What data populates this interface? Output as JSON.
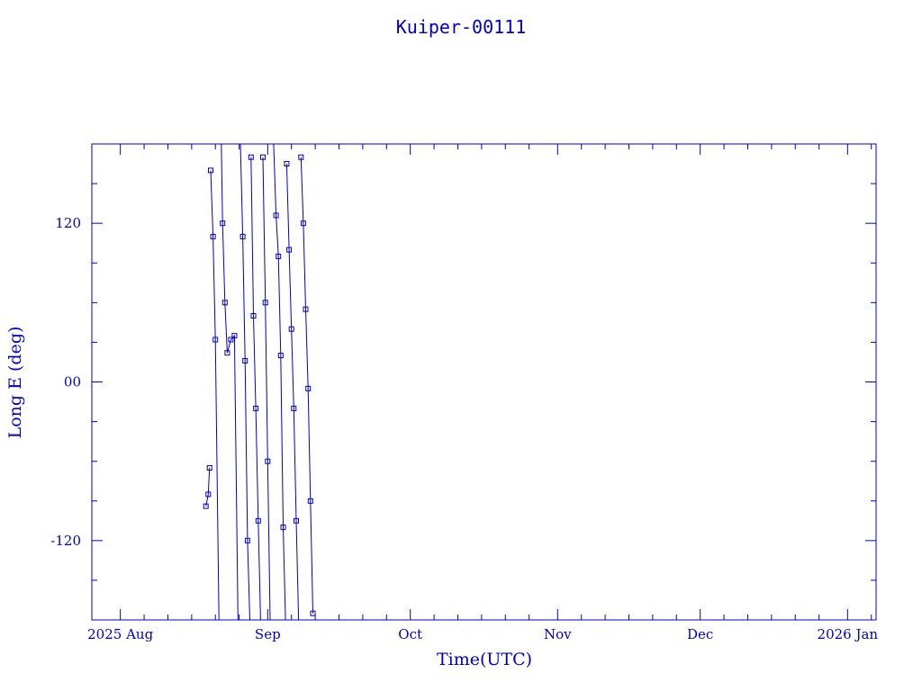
{
  "chart_data": {
    "type": "line",
    "title": "Kuiper-00111",
    "xlabel": "Time(UTC)",
    "ylabel": "Long E (deg)",
    "x_range": [
      "2025-07-26",
      "2026-01-07"
    ],
    "ylim": [
      -180,
      180
    ],
    "x_ticks": [
      {
        "date": "2025-08-01",
        "label": "2025 Aug"
      },
      {
        "date": "2025-09-01",
        "label": "Sep"
      },
      {
        "date": "2025-10-01",
        "label": "Oct"
      },
      {
        "date": "2025-11-01",
        "label": "Nov"
      },
      {
        "date": "2025-12-01",
        "label": "Dec"
      },
      {
        "date": "2026-01-01",
        "label": "2026 Jan"
      }
    ],
    "y_ticks": [
      {
        "value": 120,
        "label": "120"
      },
      {
        "value": 0,
        "label": "00"
      },
      {
        "value": -120,
        "label": "-120"
      }
    ],
    "grid": false,
    "marker": "square",
    "color": "#0000cc",
    "series": [
      {
        "segments": [
          [
            [
              "2025-08-19T00:00",
              -94
            ],
            [
              "2025-08-19T12:00",
              -85
            ],
            [
              "2025-08-19T18:00",
              -65
            ]
          ],
          [
            [
              "2025-08-20T00:00",
              160
            ],
            [
              "2025-08-20T12:00",
              110
            ],
            [
              "2025-08-21T00:00",
              32
            ],
            [
              "2025-08-21T18:00",
              -180
            ]
          ],
          [
            [
              "2025-08-22T06:00",
              180
            ],
            [
              "2025-08-22T12:00",
              120
            ],
            [
              "2025-08-23T00:00",
              60
            ],
            [
              "2025-08-23T12:00",
              22
            ],
            [
              "2025-08-24T06:00",
              32
            ],
            [
              "2025-08-25T00:00",
              35
            ],
            [
              "2025-08-25T18:00",
              -180
            ]
          ],
          [
            [
              "2025-08-26T06:00",
              180
            ],
            [
              "2025-08-26T18:00",
              110
            ],
            [
              "2025-08-27T06:00",
              16
            ],
            [
              "2025-08-27T18:00",
              -120
            ],
            [
              "2025-08-28T06:00",
              -180
            ]
          ],
          [
            [
              "2025-08-28T12:00",
              170
            ],
            [
              "2025-08-29T00:00",
              50
            ],
            [
              "2025-08-29T12:00",
              -20
            ],
            [
              "2025-08-30T00:00",
              -105
            ],
            [
              "2025-08-30T12:00",
              -180
            ]
          ],
          [
            [
              "2025-08-31T00:00",
              170
            ],
            [
              "2025-08-31T12:00",
              60
            ],
            [
              "2025-09-01T00:00",
              -60
            ],
            [
              "2025-09-01T12:00",
              -180
            ]
          ],
          [
            [
              "2025-09-02T06:00",
              180
            ],
            [
              "2025-09-02T18:00",
              126
            ],
            [
              "2025-09-03T06:00",
              95
            ],
            [
              "2025-09-03T18:00",
              20
            ],
            [
              "2025-09-04T06:00",
              -110
            ],
            [
              "2025-09-04T18:00",
              -180
            ]
          ],
          [
            [
              "2025-09-05T00:00",
              165
            ],
            [
              "2025-09-05T12:00",
              100
            ],
            [
              "2025-09-06T00:00",
              40
            ],
            [
              "2025-09-06T12:00",
              -20
            ],
            [
              "2025-09-07T00:00",
              -105
            ],
            [
              "2025-09-07T12:00",
              -180
            ]
          ],
          [
            [
              "2025-09-08T00:00",
              170
            ],
            [
              "2025-09-08T12:00",
              120
            ],
            [
              "2025-09-09T00:00",
              55
            ],
            [
              "2025-09-09T12:00",
              -5
            ],
            [
              "2025-09-10T00:00",
              -90
            ],
            [
              "2025-09-10T12:00",
              -175
            ]
          ]
        ]
      }
    ]
  }
}
